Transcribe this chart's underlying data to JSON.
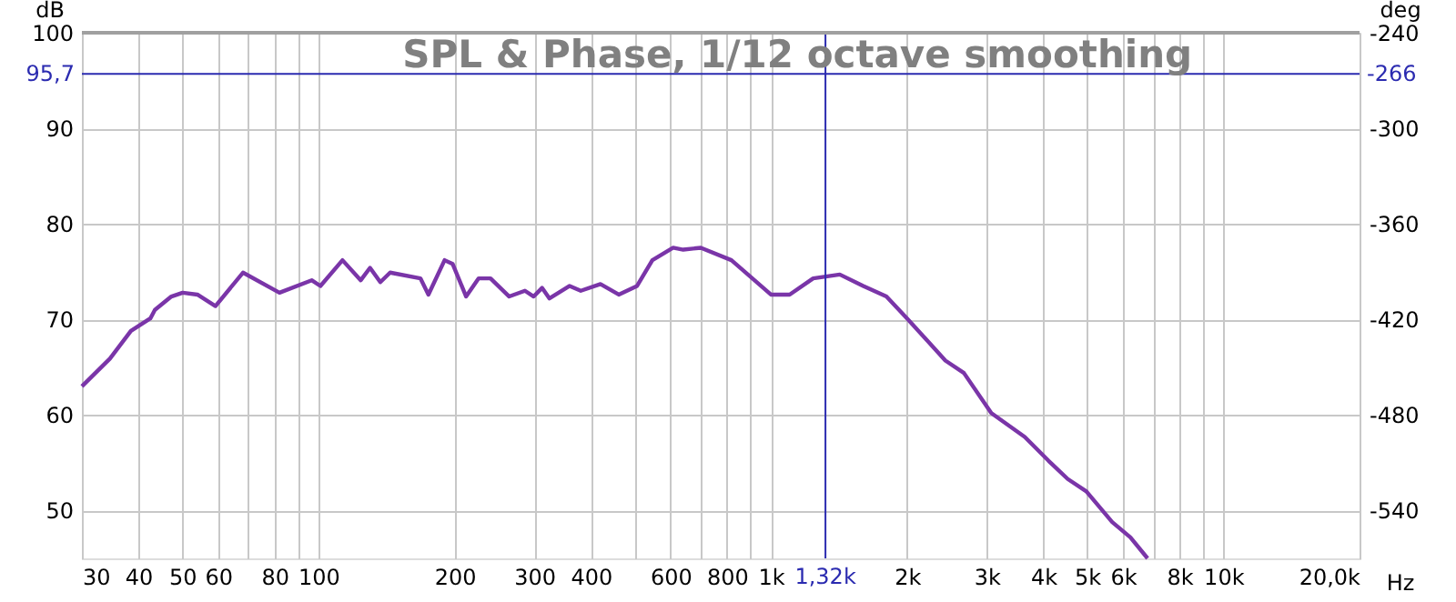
{
  "chart_data": {
    "type": "line",
    "title": "SPL & Phase, 1/12 octave smoothing",
    "xlabel": "Hz",
    "ylabel": "dB",
    "y2label": "deg",
    "log": "x",
    "grid": true,
    "line_style": "solid",
    "marker": "none",
    "xlim": [
      30,
      20000
    ],
    "ylim": [
      45,
      100
    ],
    "y2lim": [
      -570,
      -240
    ],
    "xticks": [
      30,
      40,
      50,
      60,
      {
        "value": 70,
        "label": null
      },
      80,
      {
        "value": 90,
        "label": null
      },
      100,
      200,
      300,
      400,
      {
        "value": 500,
        "label": null
      },
      600,
      {
        "value": 700,
        "label": null
      },
      800,
      {
        "value": 900,
        "label": null
      },
      {
        "value": 1000,
        "label": "1k"
      },
      {
        "value": 2000,
        "label": "2k"
      },
      {
        "value": 3000,
        "label": "3k"
      },
      {
        "value": 4000,
        "label": "4k"
      },
      {
        "value": 5000,
        "label": "5k"
      },
      {
        "value": 6000,
        "label": "6k"
      },
      {
        "value": 7000,
        "label": null
      },
      {
        "value": 8000,
        "label": "8k"
      },
      {
        "value": 9000,
        "label": null
      },
      {
        "value": 10000,
        "label": "10k"
      },
      {
        "value": 20000,
        "label": "20,0k"
      }
    ],
    "yticks": [
      50,
      60,
      70,
      80,
      90,
      100
    ],
    "y2ticks": [
      -240,
      -300,
      -360,
      -420,
      -480,
      -540
    ],
    "ref_lines": [
      {
        "axis": "y",
        "value": 95.7,
        "label": "95,7",
        "color": "#2b2bb0"
      },
      {
        "axis": "x",
        "value": 1320,
        "label": "1,32k",
        "color": "#2b2bb0"
      }
    ],
    "annotations": [
      "-266"
    ],
    "series": [
      {
        "color": "#7a35a8",
        "x": [
          30,
          34.6,
          38.5,
          42.5,
          43.5,
          47.3,
          50.1,
          54,
          59.2,
          68.1,
          82,
          96.6,
          101,
          113,
          124,
          130,
          137,
          144,
          168,
          175,
          190,
          198,
          212,
          226,
          240,
          264,
          286,
          299,
          312,
          324,
          359,
          380,
          420,
          461,
          506,
          547,
          608,
          640,
          700,
          818,
          1000,
          1100,
          1240,
          1420,
          1600,
          1800,
          2000,
          2430,
          2670,
          3070,
          3640,
          4110,
          4530,
          4980,
          5680,
          6230,
          6800
        ],
        "values": [
          63.0,
          65.9,
          68.8,
          70.1,
          71.0,
          72.4,
          72.8,
          72.6,
          71.4,
          74.9,
          72.8,
          74.1,
          73.5,
          76.2,
          74.1,
          75.4,
          73.9,
          74.9,
          74.3,
          72.6,
          76.2,
          75.8,
          72.4,
          74.3,
          74.3,
          72.4,
          73.0,
          72.4,
          73.3,
          72.2,
          73.5,
          73.0,
          73.7,
          72.6,
          73.5,
          76.2,
          77.5,
          77.3,
          77.5,
          76.2,
          72.6,
          72.6,
          74.3,
          74.7,
          73.5,
          72.4,
          70.1,
          65.7,
          64.4,
          60.2,
          57.7,
          55.2,
          53.3,
          52.0,
          48.8,
          47.2,
          45.0
        ]
      }
    ]
  }
}
